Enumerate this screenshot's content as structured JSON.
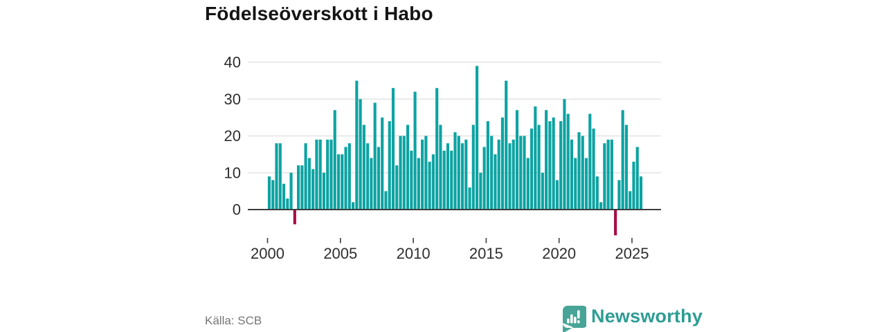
{
  "header": {
    "title": "Födelseöverskott i Habo"
  },
  "footer": {
    "source_label": "Källa: SCB",
    "brand_name": "Newsworthy",
    "brand_icon": "newsworthy-speech-bubble-bar-chart"
  },
  "colors": {
    "bar_positive": "#0da3a2",
    "bar_negative": "#a50d45",
    "axis_line": "#3c3c3c",
    "gridline": "#e3e3e3",
    "tick_label": "#2e2e2e",
    "title_text": "#141414",
    "source_text": "#757575",
    "brand_text": "#2e9d94",
    "brand_icon_bg": "#47a497"
  },
  "chart_data": {
    "type": "bar",
    "title": "Födelseöverskott i Habo",
    "xlabel": "",
    "ylabel": "",
    "frequency": "quarterly",
    "start": "2000-Q1",
    "end": "2025-Q3",
    "x_tick_labels": [
      "2000",
      "2005",
      "2010",
      "2015",
      "2020",
      "2025"
    ],
    "y_ticks": [
      0,
      10,
      20,
      30,
      40
    ],
    "ylim": [
      -8,
      40
    ],
    "grid": "horizontal",
    "legend": "none",
    "series": [
      {
        "name": "Födelseöverskott",
        "values": [
          9,
          8,
          18,
          18,
          7,
          3,
          10,
          -4,
          12,
          12,
          18,
          14,
          11,
          19,
          19,
          10,
          19,
          19,
          27,
          15,
          15,
          17,
          18,
          2,
          35,
          30,
          23,
          18,
          14,
          29,
          17,
          25,
          5,
          24,
          33,
          12,
          20,
          20,
          23,
          16,
          32,
          14,
          19,
          20,
          13,
          15,
          33,
          23,
          16,
          18,
          16,
          21,
          20,
          18,
          19,
          6,
          23,
          39,
          10,
          17,
          24,
          20,
          15,
          19,
          25,
          35,
          18,
          19,
          27,
          20,
          20,
          14,
          22,
          28,
          23,
          10,
          27,
          24,
          25,
          8,
          24,
          30,
          26,
          19,
          14,
          21,
          20,
          14,
          26,
          22,
          9,
          2,
          18,
          19,
          19,
          -7,
          8,
          27,
          23,
          5,
          13,
          17,
          9
        ]
      }
    ]
  }
}
